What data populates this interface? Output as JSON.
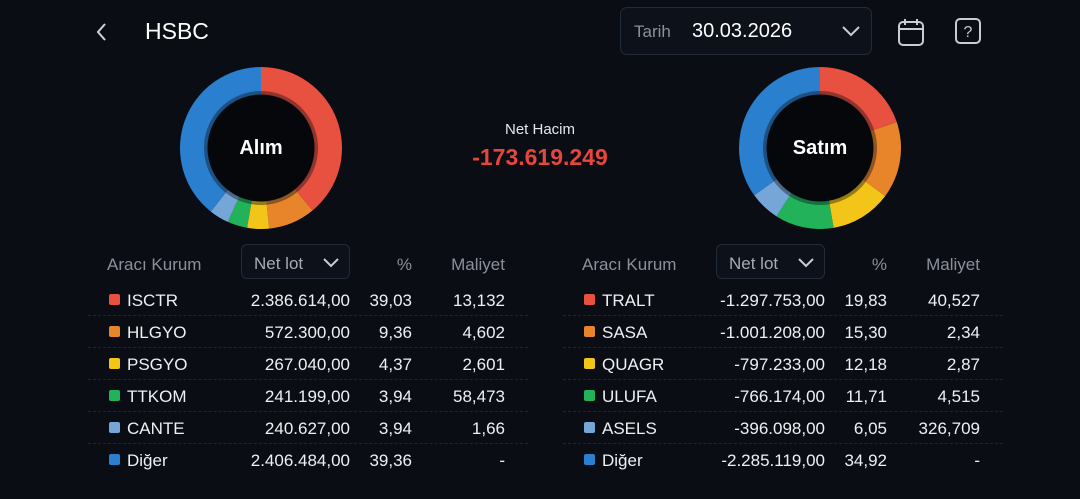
{
  "header": {
    "title": "HSBC",
    "date_label": "Tarih",
    "date_value": "30.03.2026",
    "icons": [
      "chevron-left-icon",
      "calendar-icon",
      "help-icon"
    ]
  },
  "net": {
    "label": "Net Hacim",
    "value": "-173.619.249",
    "color": "#e8453c"
  },
  "colors": [
    "#e8503f",
    "#e8852a",
    "#f2c518",
    "#22b35a",
    "#76a6d8",
    "#2a7fce"
  ],
  "buy": {
    "center": "Alım",
    "headers": {
      "broker": "Aracı Kurum",
      "metric": "Net lot",
      "pct": "%",
      "cost": "Maliyet"
    },
    "rows": [
      {
        "name": "ISCTR",
        "lot": "2.386.614,00",
        "pct": "39,03",
        "cost": "13,132",
        "share": 39.03
      },
      {
        "name": "HLGYO",
        "lot": "572.300,00",
        "pct": "9,36",
        "cost": "4,602",
        "share": 9.36
      },
      {
        "name": "PSGYO",
        "lot": "267.040,00",
        "pct": "4,37",
        "cost": "2,601",
        "share": 4.37
      },
      {
        "name": "TTKOM",
        "lot": "241.199,00",
        "pct": "3,94",
        "cost": "58,473",
        "share": 3.94
      },
      {
        "name": "CANTE",
        "lot": "240.627,00",
        "pct": "3,94",
        "cost": "1,66",
        "share": 3.94
      },
      {
        "name": "Diğer",
        "lot": "2.406.484,00",
        "pct": "39,36",
        "cost": "-",
        "share": 39.36
      }
    ]
  },
  "sell": {
    "center": "Satım",
    "headers": {
      "broker": "Aracı Kurum",
      "metric": "Net lot",
      "pct": "%",
      "cost": "Maliyet"
    },
    "rows": [
      {
        "name": "TRALT",
        "lot": "-1.297.753,00",
        "pct": "19,83",
        "cost": "40,527",
        "share": 19.83
      },
      {
        "name": "SASA",
        "lot": "-1.001.208,00",
        "pct": "15,30",
        "cost": "2,34",
        "share": 15.3
      },
      {
        "name": "QUAGR",
        "lot": "-797.233,00",
        "pct": "12,18",
        "cost": "2,87",
        "share": 12.18
      },
      {
        "name": "ULUFA",
        "lot": "-766.174,00",
        "pct": "11,71",
        "cost": "4,515",
        "share": 11.71
      },
      {
        "name": "ASELS",
        "lot": "-396.098,00",
        "pct": "6,05",
        "cost": "326,709",
        "share": 6.05
      },
      {
        "name": "Diğer",
        "lot": "-2.285.119,00",
        "pct": "34,92",
        "cost": "-",
        "share": 34.92
      }
    ]
  }
}
